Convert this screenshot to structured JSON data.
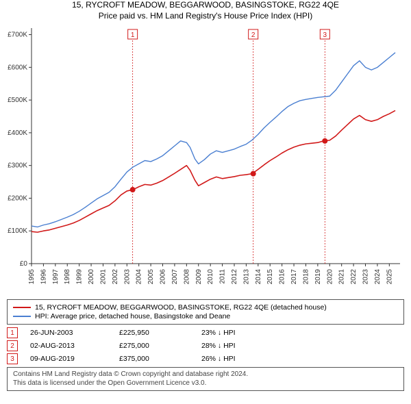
{
  "title_line1": "15, RYCROFT MEADOW, BEGGARWOOD, BASINGSTOKE, RG22 4QE",
  "title_line2": "Price paid vs. HM Land Registry's House Price Index (HPI)",
  "title_fontsize": 12,
  "chart": {
    "type": "line",
    "background_color": "#ffffff",
    "axis_color": "#333333",
    "x": {
      "min": 1995,
      "max": 2025.9,
      "ticks": [
        1995,
        1996,
        1997,
        1998,
        1999,
        2000,
        2001,
        2002,
        2003,
        2004,
        2005,
        2006,
        2007,
        2008,
        2009,
        2010,
        2011,
        2012,
        2013,
        2014,
        2015,
        2016,
        2017,
        2018,
        2019,
        2020,
        2021,
        2022,
        2023,
        2024,
        2025
      ],
      "tick_labels": [
        "1995",
        "1996",
        "1997",
        "1998",
        "1999",
        "2000",
        "2001",
        "2002",
        "2003",
        "2004",
        "2005",
        "2006",
        "2007",
        "2008",
        "2009",
        "2010",
        "2011",
        "2012",
        "2013",
        "2014",
        "2015",
        "2016",
        "2017",
        "2018",
        "2019",
        "2020",
        "2021",
        "2022",
        "2023",
        "2024",
        "2025"
      ],
      "tick_rotation": -90,
      "tick_fontsize": 10
    },
    "y": {
      "min": 0,
      "max": 720000,
      "ticks": [
        0,
        100000,
        200000,
        300000,
        400000,
        500000,
        600000,
        700000
      ],
      "tick_labels": [
        "£0",
        "£100K",
        "£200K",
        "£300K",
        "£400K",
        "£500K",
        "£600K",
        "£700K"
      ],
      "tick_fontsize": 10
    },
    "series": [
      {
        "name": "hpi",
        "color": "#4a7fd1",
        "width": 1.4,
        "points": [
          [
            1995.0,
            115000
          ],
          [
            1995.5,
            112000
          ],
          [
            1996.0,
            118000
          ],
          [
            1996.5,
            122000
          ],
          [
            1997.0,
            128000
          ],
          [
            1997.5,
            135000
          ],
          [
            1998.0,
            142000
          ],
          [
            1998.5,
            150000
          ],
          [
            1999.0,
            160000
          ],
          [
            1999.5,
            172000
          ],
          [
            2000.0,
            185000
          ],
          [
            2000.5,
            198000
          ],
          [
            2001.0,
            208000
          ],
          [
            2001.5,
            218000
          ],
          [
            2002.0,
            235000
          ],
          [
            2002.5,
            258000
          ],
          [
            2003.0,
            280000
          ],
          [
            2003.5,
            295000
          ],
          [
            2004.0,
            305000
          ],
          [
            2004.5,
            315000
          ],
          [
            2005.0,
            312000
          ],
          [
            2005.5,
            320000
          ],
          [
            2006.0,
            330000
          ],
          [
            2006.5,
            345000
          ],
          [
            2007.0,
            360000
          ],
          [
            2007.5,
            375000
          ],
          [
            2008.0,
            370000
          ],
          [
            2008.3,
            355000
          ],
          [
            2008.7,
            320000
          ],
          [
            2009.0,
            305000
          ],
          [
            2009.5,
            318000
          ],
          [
            2010.0,
            335000
          ],
          [
            2010.5,
            345000
          ],
          [
            2011.0,
            340000
          ],
          [
            2011.5,
            345000
          ],
          [
            2012.0,
            350000
          ],
          [
            2012.5,
            358000
          ],
          [
            2013.0,
            365000
          ],
          [
            2013.5,
            378000
          ],
          [
            2014.0,
            395000
          ],
          [
            2014.5,
            415000
          ],
          [
            2015.0,
            432000
          ],
          [
            2015.5,
            448000
          ],
          [
            2016.0,
            465000
          ],
          [
            2016.5,
            480000
          ],
          [
            2017.0,
            490000
          ],
          [
            2017.5,
            498000
          ],
          [
            2018.0,
            502000
          ],
          [
            2018.5,
            505000
          ],
          [
            2019.0,
            508000
          ],
          [
            2019.5,
            510000
          ],
          [
            2020.0,
            512000
          ],
          [
            2020.5,
            530000
          ],
          [
            2021.0,
            555000
          ],
          [
            2021.5,
            580000
          ],
          [
            2022.0,
            605000
          ],
          [
            2022.5,
            620000
          ],
          [
            2023.0,
            600000
          ],
          [
            2023.5,
            592000
          ],
          [
            2024.0,
            600000
          ],
          [
            2024.5,
            615000
          ],
          [
            2025.0,
            630000
          ],
          [
            2025.5,
            645000
          ]
        ]
      },
      {
        "name": "property",
        "color": "#d11919",
        "width": 1.6,
        "points": [
          [
            1995.0,
            98000
          ],
          [
            1995.5,
            96000
          ],
          [
            1996.0,
            100000
          ],
          [
            1996.5,
            103000
          ],
          [
            1997.0,
            108000
          ],
          [
            1997.5,
            113000
          ],
          [
            1998.0,
            118000
          ],
          [
            1998.5,
            124000
          ],
          [
            1999.0,
            132000
          ],
          [
            1999.5,
            142000
          ],
          [
            2000.0,
            152000
          ],
          [
            2000.5,
            162000
          ],
          [
            2001.0,
            170000
          ],
          [
            2001.5,
            178000
          ],
          [
            2002.0,
            192000
          ],
          [
            2002.5,
            210000
          ],
          [
            2003.0,
            222000
          ],
          [
            2003.5,
            225950
          ],
          [
            2004.0,
            235000
          ],
          [
            2004.5,
            242000
          ],
          [
            2005.0,
            240000
          ],
          [
            2005.5,
            246000
          ],
          [
            2006.0,
            254000
          ],
          [
            2006.5,
            265000
          ],
          [
            2007.0,
            276000
          ],
          [
            2007.5,
            288000
          ],
          [
            2008.0,
            300000
          ],
          [
            2008.3,
            285000
          ],
          [
            2008.7,
            255000
          ],
          [
            2009.0,
            238000
          ],
          [
            2009.5,
            248000
          ],
          [
            2010.0,
            258000
          ],
          [
            2010.5,
            265000
          ],
          [
            2011.0,
            260000
          ],
          [
            2011.5,
            263000
          ],
          [
            2012.0,
            266000
          ],
          [
            2012.5,
            270000
          ],
          [
            2013.0,
            272000
          ],
          [
            2013.5,
            275000
          ],
          [
            2014.0,
            288000
          ],
          [
            2014.5,
            302000
          ],
          [
            2015.0,
            315000
          ],
          [
            2015.5,
            326000
          ],
          [
            2016.0,
            338000
          ],
          [
            2016.5,
            348000
          ],
          [
            2017.0,
            356000
          ],
          [
            2017.5,
            362000
          ],
          [
            2018.0,
            366000
          ],
          [
            2018.5,
            368000
          ],
          [
            2019.0,
            370000
          ],
          [
            2019.5,
            375000
          ],
          [
            2020.0,
            377000
          ],
          [
            2020.5,
            390000
          ],
          [
            2021.0,
            408000
          ],
          [
            2021.5,
            425000
          ],
          [
            2022.0,
            442000
          ],
          [
            2022.5,
            453000
          ],
          [
            2023.0,
            440000
          ],
          [
            2023.5,
            435000
          ],
          [
            2024.0,
            440000
          ],
          [
            2024.5,
            450000
          ],
          [
            2025.0,
            458000
          ],
          [
            2025.5,
            468000
          ]
        ]
      }
    ],
    "markers": [
      {
        "n": "1",
        "x": 2003.48,
        "y": 225950,
        "color": "#d11919"
      },
      {
        "n": "2",
        "x": 2013.59,
        "y": 275000,
        "color": "#d11919"
      },
      {
        "n": "3",
        "x": 2019.6,
        "y": 375000,
        "color": "#d11919"
      }
    ],
    "marker_style": {
      "radius": 4,
      "badge_border": "#d11919",
      "badge_text": "#d11919",
      "badge_bg": "#ffffff",
      "vline_color": "#d11919",
      "vline_dash": "2,2",
      "vline_width": 0.8
    }
  },
  "legend": {
    "rows": [
      {
        "color": "#d11919",
        "label": "15, RYCROFT MEADOW, BEGGARWOOD, BASINGSTOKE, RG22 4QE (detached house)"
      },
      {
        "color": "#4a7fd1",
        "label": "HPI: Average price, detached house, Basingstoke and Deane"
      }
    ]
  },
  "events": [
    {
      "n": "1",
      "date": "26-JUN-2003",
      "price": "£225,950",
      "delta": "23% ↓ HPI"
    },
    {
      "n": "2",
      "date": "02-AUG-2013",
      "price": "£275,000",
      "delta": "28% ↓ HPI"
    },
    {
      "n": "3",
      "date": "09-AUG-2019",
      "price": "£375,000",
      "delta": "26% ↓ HPI"
    }
  ],
  "event_badge": {
    "border": "#d11919",
    "text": "#d11919",
    "bg": "#ffffff"
  },
  "license_line1": "Contains HM Land Registry data © Crown copyright and database right 2024.",
  "license_line2": "This data is licensed under the Open Government Licence v3.0."
}
